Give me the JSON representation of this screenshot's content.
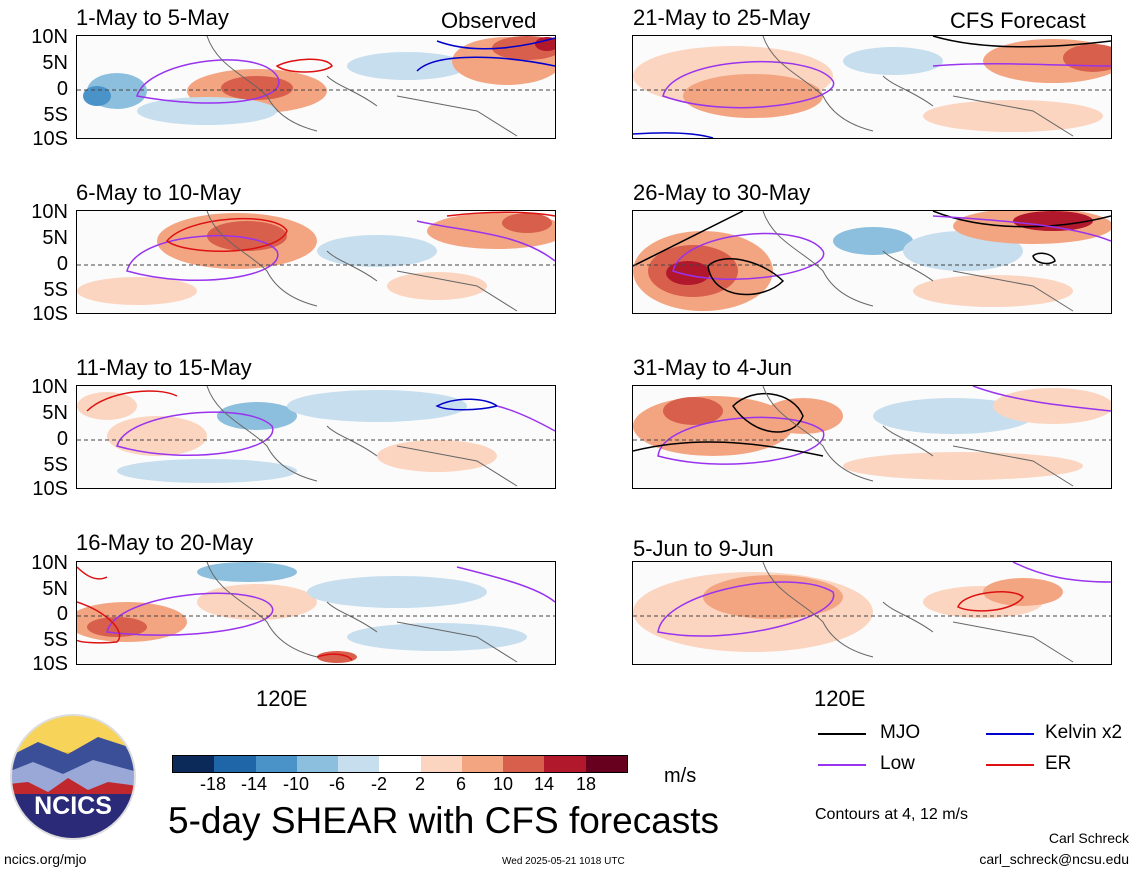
{
  "panels": [
    {
      "title": "1-May to 5-May",
      "corner": "Observed"
    },
    {
      "title": "21-May to 25-May",
      "corner": "CFS Forecast"
    },
    {
      "title": "6-May to 10-May",
      "corner": ""
    },
    {
      "title": "26-May to 30-May",
      "corner": ""
    },
    {
      "title": "11-May to 15-May",
      "corner": ""
    },
    {
      "title": "31-May to 4-Jun",
      "corner": ""
    },
    {
      "title": "16-May to 20-May",
      "corner": ""
    },
    {
      "title": "5-Jun to 9-Jun",
      "corner": ""
    }
  ],
  "lat_labels": [
    "10N",
    "5N",
    "0",
    "5S",
    "10S"
  ],
  "lon_label": "120E",
  "colorbar": {
    "colors": [
      "#0b2a5a",
      "#1f66a8",
      "#4a93c8",
      "#8cbfdd",
      "#c6deee",
      "#ffffff",
      "#fbd5c0",
      "#f3a582",
      "#d75f4c",
      "#b2182b",
      "#67001f"
    ],
    "ticks": [
      "-18",
      "-14",
      "-10",
      "-6",
      "-2",
      "2",
      "6",
      "10",
      "14",
      "18"
    ],
    "units": "m/s"
  },
  "title": "5-day SHEAR with CFS forecasts",
  "legend": [
    {
      "label": "MJO",
      "color": "#000000"
    },
    {
      "label": "Kelvin x2",
      "color": "#0000cc"
    },
    {
      "label": "Low",
      "color": "#9933ee"
    },
    {
      "label": "ER",
      "color": "#dd1111"
    }
  ],
  "contours_note": "Contours at 4, 12 m/s",
  "author": "Carl Schreck",
  "email": "carl_schreck@ncsu.edu",
  "site": "ncics.org/mjo",
  "timestamp": "Wed 2025-05-21 1018 UTC",
  "logo_text": "NCICS"
}
